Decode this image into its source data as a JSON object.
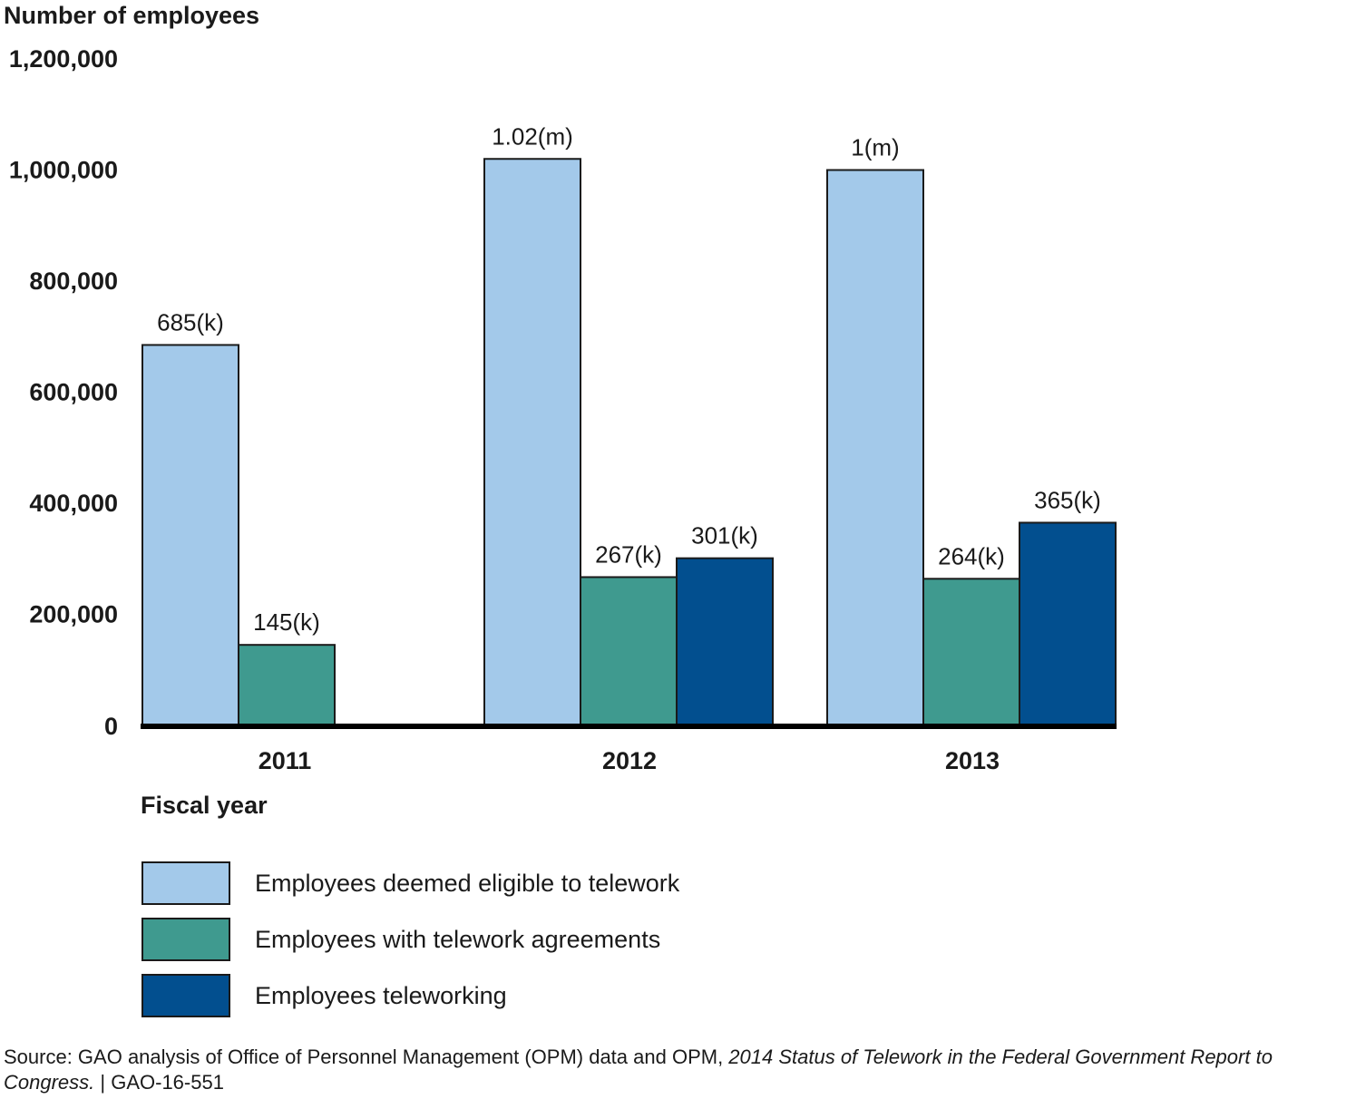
{
  "chart_data": {
    "type": "bar",
    "title": "",
    "ylabel": "Number of employees",
    "xlabel": "Fiscal year",
    "categories": [
      "2011",
      "2012",
      "2013"
    ],
    "ylim": [
      0,
      1200000
    ],
    "yticks": [
      0,
      200000,
      400000,
      600000,
      800000,
      1000000,
      1200000
    ],
    "ytick_labels": [
      "0",
      "200,000",
      "400,000",
      "600,000",
      "800,000",
      "1,000,000",
      "1,200,000"
    ],
    "grid": false,
    "legend_position": "bottom",
    "series": [
      {
        "name": "Employees deemed eligible to telework",
        "color": "#a3c9ea",
        "values": [
          685000,
          1020000,
          1000000
        ],
        "labels": [
          "685(k)",
          "1.02(m)",
          "1(m)"
        ]
      },
      {
        "name": "Employees with telework agreements",
        "color": "#3f9a8f",
        "values": [
          145000,
          267000,
          264000
        ],
        "labels": [
          "145(k)",
          "267(k)",
          "264(k)"
        ]
      },
      {
        "name": "Employees teleworking",
        "color": "#024f8f",
        "values": [
          null,
          301000,
          365000
        ],
        "labels": [
          "",
          "301(k)",
          "365(k)"
        ]
      }
    ]
  },
  "source": {
    "prefix": "Source: GAO analysis of Office of Personnel Management (OPM) data and OPM, ",
    "title": "2014 Status of Telework in the Federal Government Report to Congress.",
    "suffix": " | GAO-16-551"
  }
}
